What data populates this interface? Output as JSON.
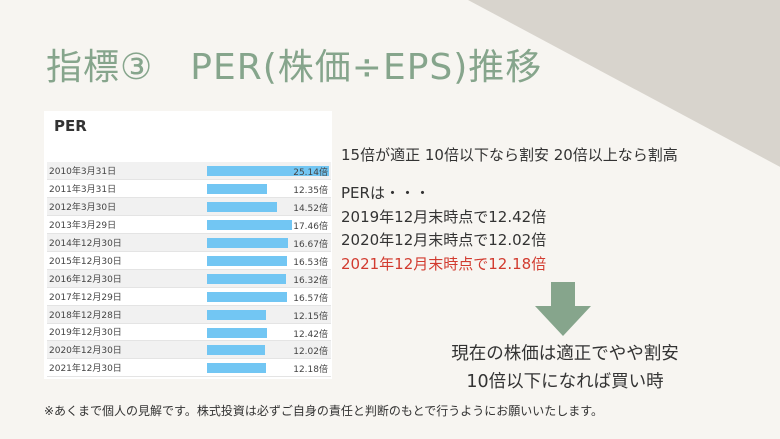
{
  "title": "指標③　PER(株価÷EPS)推移",
  "table": {
    "heading": "PER",
    "rows": [
      {
        "date": "2010年3月31日",
        "label": "25.14倍",
        "value": 25.14
      },
      {
        "date": "2011年3月31日",
        "label": "12.35倍",
        "value": 12.35
      },
      {
        "date": "2012年3月30日",
        "label": "14.52倍",
        "value": 14.52
      },
      {
        "date": "2013年3月29日",
        "label": "17.46倍",
        "value": 17.46
      },
      {
        "date": "2014年12月30日",
        "label": "16.67倍",
        "value": 16.67
      },
      {
        "date": "2015年12月30日",
        "label": "16.53倍",
        "value": 16.53
      },
      {
        "date": "2016年12月30日",
        "label": "16.32倍",
        "value": 16.32
      },
      {
        "date": "2017年12月29日",
        "label": "16.57倍",
        "value": 16.57
      },
      {
        "date": "2018年12月28日",
        "label": "12.15倍",
        "value": 12.15
      },
      {
        "date": "2019年12月30日",
        "label": "12.42倍",
        "value": 12.42
      },
      {
        "date": "2020年12月30日",
        "label": "12.02倍",
        "value": 12.02
      },
      {
        "date": "2021年12月30日",
        "label": "12.18倍",
        "value": 12.18
      }
    ]
  },
  "guideline": "15倍が適正 10倍以下なら割安 20倍以上なら割高",
  "per_intro": "PERは・・・",
  "per_2019": "2019年12月末時点で12.42倍",
  "per_2020": "2020年12月末時点で12.02倍",
  "per_2021": "2021年12月末時点で12.18倍",
  "conclusion_line1": "現在の株価は適正でやや割安",
  "conclusion_line2": "10倍以下になれば買い時",
  "disclaimer": "※あくまで個人の見解です。株式投資は必ずご自身の責任と判断のもとで行うようにお願いいたします。",
  "colors": {
    "title": "#86a58c",
    "bar": "#72c6f3",
    "highlight": "#d23b2f",
    "arrow": "#86a58c"
  },
  "arrow_icon": "down-arrow-icon"
}
